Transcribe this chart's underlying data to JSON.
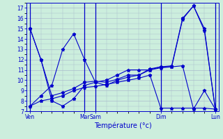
{
  "xlabel": "Température (°c)",
  "background_color": "#cceedd",
  "grid_color": "#aabbcc",
  "line_color": "#0000cc",
  "ylim": [
    7,
    17.5
  ],
  "yticks": [
    7,
    8,
    9,
    10,
    11,
    12,
    13,
    14,
    15,
    16,
    17
  ],
  "xtick_major_positions": [
    0,
    5,
    6,
    12,
    17
  ],
  "xtick_major_labels": [
    "Ven",
    "Mar",
    "Sam",
    "Dim",
    "Lun"
  ],
  "n_points": 18,
  "major_vlines": [
    0,
    5,
    6,
    12,
    17
  ],
  "series": [
    [
      15,
      12,
      8.0,
      7.5,
      8.2,
      9.5,
      9.8,
      9.5,
      10.0,
      10.3,
      10.5,
      11.0,
      11.2,
      11.3,
      15.9,
      17.2,
      15.0,
      7.2
    ],
    [
      15,
      12,
      8.5,
      8.8,
      9.2,
      9.8,
      9.9,
      9.8,
      10.1,
      10.5,
      10.5,
      11.1,
      11.3,
      11.4,
      16.0,
      17.2,
      14.8,
      7.2
    ],
    [
      7.5,
      8.0,
      8.2,
      8.5,
      9.0,
      9.3,
      9.4,
      9.6,
      9.8,
      10.0,
      10.2,
      10.5,
      7.3,
      7.3,
      7.3,
      7.3,
      7.3,
      7.2
    ],
    [
      7.5,
      8.5,
      9.5,
      13.0,
      14.5,
      12.0,
      9.8,
      10.0,
      10.5,
      11.0,
      11.0,
      11.0,
      11.3,
      11.3,
      11.4,
      7.2,
      9.0,
      7.2
    ]
  ]
}
